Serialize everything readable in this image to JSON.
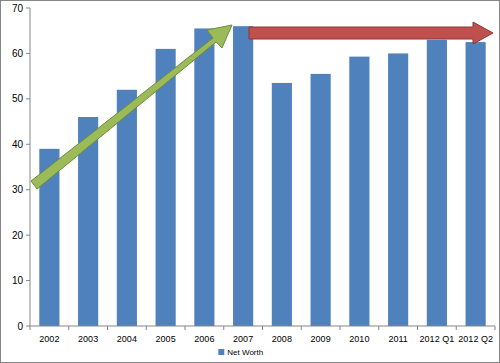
{
  "chart_data": {
    "type": "bar",
    "categories": [
      "2002",
      "2003",
      "2004",
      "2005",
      "2006",
      "2007",
      "2008",
      "2009",
      "2010",
      "2011",
      "2012 Q1",
      "2012 Q2"
    ],
    "series": [
      {
        "name": "Net Worth",
        "color": "#4f81bd",
        "values": [
          39,
          46,
          52,
          61,
          65.5,
          66,
          53.5,
          55.5,
          59.3,
          60,
          63,
          62.5
        ]
      }
    ],
    "ylim": [
      0,
      70
    ],
    "yticks": [
      0,
      10,
      20,
      30,
      40,
      50,
      60,
      70
    ],
    "grid": false,
    "legend": "bottom"
  }
}
